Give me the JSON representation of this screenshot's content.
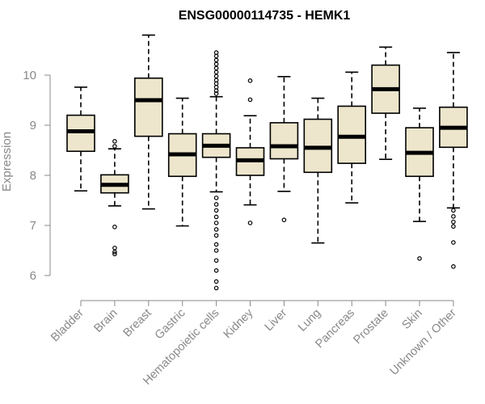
{
  "chart_data": {
    "type": "boxplot",
    "title": "ENSG00000114735 - HEMK1",
    "xlabel": "",
    "ylabel": "Expression",
    "ylim": [
      5.6,
      10.85
    ],
    "yticks": [
      6,
      7,
      8,
      9,
      10
    ],
    "box_fill": "#ede6cc",
    "box_stroke": "#000000",
    "axis_color": "#888888",
    "categories": [
      "Bladder",
      "Brain",
      "Breast",
      "Gastric",
      "Hematopoietic cells",
      "Kidney",
      "Liver",
      "Lung",
      "Pancreas",
      "Prostate",
      "Skin",
      "Unknown / Other"
    ],
    "boxes": [
      {
        "name": "Bladder",
        "min": 7.69,
        "q1": 8.48,
        "median": 8.88,
        "q3": 9.2,
        "max": 9.76,
        "outliers": []
      },
      {
        "name": "Brain",
        "min": 7.39,
        "q1": 7.65,
        "median": 7.81,
        "q3": 8.01,
        "max": 8.53,
        "outliers": [
          8.58,
          8.68,
          6.97,
          6.55,
          6.47,
          6.43
        ]
      },
      {
        "name": "Breast",
        "min": 7.33,
        "q1": 8.78,
        "median": 9.5,
        "q3": 9.94,
        "max": 10.8,
        "outliers": []
      },
      {
        "name": "Gastric",
        "min": 6.99,
        "q1": 7.98,
        "median": 8.42,
        "q3": 8.83,
        "max": 9.54,
        "outliers": []
      },
      {
        "name": "Hematopoietic cells",
        "min": 7.67,
        "q1": 8.36,
        "median": 8.59,
        "q3": 8.83,
        "max": 9.57,
        "outliers": [
          10.45,
          10.38,
          10.3,
          10.22,
          10.14,
          10.06,
          9.98,
          9.9,
          9.83,
          9.76,
          9.69,
          9.63,
          7.55,
          7.42,
          7.3,
          7.17,
          7.05,
          6.92,
          6.8,
          6.62,
          6.5,
          6.3,
          6.1,
          5.88,
          5.75
        ]
      },
      {
        "name": "Kidney",
        "min": 7.41,
        "q1": 8.0,
        "median": 8.3,
        "q3": 8.55,
        "max": 9.19,
        "outliers": [
          9.89,
          9.51,
          7.05
        ]
      },
      {
        "name": "Liver",
        "min": 7.68,
        "q1": 8.33,
        "median": 8.58,
        "q3": 9.05,
        "max": 9.97,
        "outliers": [
          7.11
        ]
      },
      {
        "name": "Lung",
        "min": 6.65,
        "q1": 8.06,
        "median": 8.55,
        "q3": 9.12,
        "max": 9.54,
        "outliers": []
      },
      {
        "name": "Pancreas",
        "min": 7.45,
        "q1": 8.24,
        "median": 8.77,
        "q3": 9.38,
        "max": 10.06,
        "outliers": []
      },
      {
        "name": "Prostate",
        "min": 8.32,
        "q1": 9.24,
        "median": 9.72,
        "q3": 10.2,
        "max": 10.56,
        "outliers": []
      },
      {
        "name": "Skin",
        "min": 7.08,
        "q1": 7.98,
        "median": 8.45,
        "q3": 8.95,
        "max": 9.34,
        "outliers": [
          6.34
        ]
      },
      {
        "name": "Unknown / Other",
        "min": 7.35,
        "q1": 8.56,
        "median": 8.95,
        "q3": 9.36,
        "max": 10.45,
        "outliers": [
          7.3,
          7.18,
          7.07,
          6.98,
          6.66,
          6.18
        ]
      }
    ]
  }
}
